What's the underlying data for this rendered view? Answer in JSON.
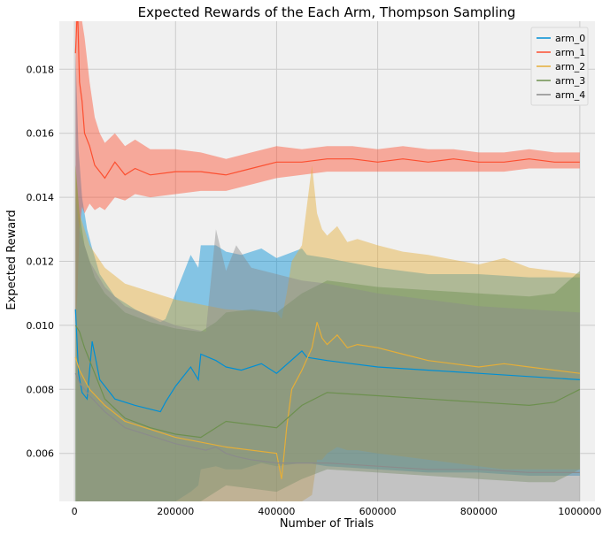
{
  "chart_data": {
    "type": "line",
    "title": "Expected Rewards of the Each Arm, Thompson Sampling",
    "xlabel": "Number of Trials",
    "ylabel": "Expected Reward",
    "xlim": [
      -30000,
      1030000
    ],
    "ylim": [
      0.0045,
      0.0195
    ],
    "xticks": [
      0,
      200000,
      400000,
      600000,
      800000,
      1000000
    ],
    "xtick_labels": [
      "0",
      "200000",
      "400000",
      "600000",
      "800000",
      "1000000"
    ],
    "yticks": [
      0.006,
      0.008,
      0.01,
      0.012,
      0.014,
      0.016,
      0.018
    ],
    "ytick_labels": [
      "0.006",
      "0.008",
      "0.010",
      "0.012",
      "0.014",
      "0.016",
      "0.018"
    ],
    "grid": true,
    "legend_position": "top-right",
    "background": "#f0f0f0",
    "series": [
      {
        "name": "arm_0",
        "color": "#008fd5",
        "x": [
          2000,
          8000,
          15000,
          25000,
          35000,
          50000,
          80000,
          120000,
          170000,
          180000,
          200000,
          230000,
          245000,
          250000,
          280000,
          300000,
          330000,
          370000,
          400000,
          450000,
          460000,
          500000,
          600000,
          700000,
          800000,
          900000,
          1000000
        ],
        "y": [
          0.0105,
          0.0085,
          0.0079,
          0.0077,
          0.0095,
          0.0083,
          0.0077,
          0.0075,
          0.0073,
          0.0076,
          0.0081,
          0.0087,
          0.0083,
          0.0091,
          0.0089,
          0.0087,
          0.0086,
          0.0088,
          0.0085,
          0.0092,
          0.009,
          0.0089,
          0.0087,
          0.0086,
          0.0085,
          0.0084,
          0.0083
        ],
        "lower": [
          0.0045,
          0.0045,
          0.0045,
          0.0045,
          0.0045,
          0.0045,
          0.0045,
          0.0045,
          0.0045,
          0.0045,
          0.0045,
          0.0048,
          0.005,
          0.0055,
          0.0056,
          0.0055,
          0.0055,
          0.0057,
          0.0056,
          0.0057,
          0.0057,
          0.0056,
          0.0055,
          0.0054,
          0.0054,
          0.0053,
          0.0053
        ],
        "upper": [
          0.0185,
          0.0155,
          0.014,
          0.013,
          0.0124,
          0.0116,
          0.0109,
          0.0105,
          0.0101,
          0.0102,
          0.011,
          0.0122,
          0.0118,
          0.0125,
          0.0125,
          0.0123,
          0.0122,
          0.0124,
          0.0121,
          0.0124,
          0.0122,
          0.0121,
          0.0118,
          0.0116,
          0.0116,
          0.0115,
          0.0115
        ]
      },
      {
        "name": "arm_1",
        "color": "#fc4f30",
        "x": [
          2000,
          6000,
          10000,
          15000,
          20000,
          30000,
          40000,
          50000,
          60000,
          80000,
          100000,
          120000,
          150000,
          200000,
          250000,
          300000,
          350000,
          400000,
          450000,
          500000,
          550000,
          600000,
          650000,
          700000,
          750000,
          800000,
          850000,
          900000,
          950000,
          1000000
        ],
        "y": [
          0.0185,
          0.02,
          0.0176,
          0.017,
          0.016,
          0.0156,
          0.015,
          0.0148,
          0.0146,
          0.0151,
          0.0147,
          0.0149,
          0.0147,
          0.0148,
          0.0148,
          0.0147,
          0.0149,
          0.0151,
          0.0151,
          0.0152,
          0.0152,
          0.0151,
          0.0152,
          0.0151,
          0.0152,
          0.0151,
          0.0151,
          0.0152,
          0.0151,
          0.0151
        ],
        "lower": [
          0.01,
          0.011,
          0.013,
          0.0137,
          0.0135,
          0.0138,
          0.0136,
          0.0137,
          0.0136,
          0.014,
          0.0139,
          0.0141,
          0.014,
          0.0141,
          0.0142,
          0.0142,
          0.0144,
          0.0146,
          0.0147,
          0.0148,
          0.0148,
          0.0148,
          0.0148,
          0.0148,
          0.0148,
          0.0148,
          0.0148,
          0.0149,
          0.0149,
          0.0149
        ],
        "upper": [
          0.02,
          0.02,
          0.02,
          0.02,
          0.019,
          0.0176,
          0.0165,
          0.016,
          0.0157,
          0.016,
          0.0156,
          0.0158,
          0.0155,
          0.0155,
          0.0154,
          0.0152,
          0.0154,
          0.0156,
          0.0155,
          0.0156,
          0.0156,
          0.0155,
          0.0156,
          0.0155,
          0.0155,
          0.0154,
          0.0154,
          0.0155,
          0.0154,
          0.0154
        ]
      },
      {
        "name": "arm_2",
        "color": "#e5ae38",
        "x": [
          2000,
          10000,
          30000,
          60000,
          100000,
          200000,
          300000,
          400000,
          410000,
          420000,
          430000,
          450000,
          470000,
          480000,
          490000,
          500000,
          520000,
          540000,
          560000,
          600000,
          650000,
          700000,
          800000,
          850000,
          900000,
          1000000
        ],
        "y": [
          0.009,
          0.0086,
          0.008,
          0.0075,
          0.007,
          0.0065,
          0.0062,
          0.006,
          0.0052,
          0.0068,
          0.008,
          0.0086,
          0.0093,
          0.0101,
          0.0096,
          0.0094,
          0.0097,
          0.0093,
          0.0094,
          0.0093,
          0.0091,
          0.0089,
          0.0087,
          0.0088,
          0.0087,
          0.0085
        ],
        "lower": [
          0.0045,
          0.0045,
          0.0045,
          0.0045,
          0.0045,
          0.0045,
          0.0045,
          0.0045,
          0.0045,
          0.0045,
          0.0045,
          0.0045,
          0.0047,
          0.0058,
          0.0058,
          0.006,
          0.0062,
          0.0061,
          0.0061,
          0.006,
          0.0059,
          0.0058,
          0.0056,
          0.0055,
          0.0055,
          0.0055
        ],
        "upper": [
          0.015,
          0.0135,
          0.0125,
          0.0118,
          0.0113,
          0.0108,
          0.0105,
          0.0104,
          0.0102,
          0.011,
          0.012,
          0.0125,
          0.015,
          0.0135,
          0.013,
          0.0128,
          0.0131,
          0.0126,
          0.0127,
          0.0125,
          0.0123,
          0.0122,
          0.0119,
          0.0121,
          0.0118,
          0.0116
        ]
      },
      {
        "name": "arm_3",
        "color": "#6d904f",
        "x": [
          2000,
          10000,
          20000,
          40000,
          60000,
          100000,
          150000,
          200000,
          250000,
          280000,
          300000,
          350000,
          400000,
          450000,
          500000,
          600000,
          700000,
          800000,
          900000,
          950000,
          1000000
        ],
        "y": [
          0.01,
          0.0098,
          0.0093,
          0.0085,
          0.0077,
          0.0071,
          0.0068,
          0.0066,
          0.0065,
          0.0068,
          0.007,
          0.0069,
          0.0068,
          0.0075,
          0.0079,
          0.0078,
          0.0077,
          0.0076,
          0.0075,
          0.0076,
          0.008
        ],
        "lower": [
          0.0045,
          0.0045,
          0.0045,
          0.0045,
          0.0045,
          0.0045,
          0.0045,
          0.0045,
          0.0045,
          0.0048,
          0.005,
          0.0049,
          0.0048,
          0.0052,
          0.0055,
          0.0054,
          0.0053,
          0.0052,
          0.0051,
          0.0051,
          0.0055
        ],
        "upper": [
          0.015,
          0.0135,
          0.0125,
          0.0115,
          0.011,
          0.0104,
          0.0101,
          0.0099,
          0.0098,
          0.0101,
          0.0104,
          0.0105,
          0.0104,
          0.011,
          0.0114,
          0.0112,
          0.0111,
          0.011,
          0.0109,
          0.011,
          0.0117
        ]
      },
      {
        "name": "arm_4",
        "color": "#8b8b8b",
        "x": [
          2000,
          10000,
          30000,
          60000,
          100000,
          200000,
          260000,
          280000,
          300000,
          320000,
          350000,
          400000,
          450000,
          500000,
          600000,
          700000,
          800000,
          900000,
          1000000
        ],
        "y": [
          0.0085,
          0.0082,
          0.0078,
          0.0073,
          0.0068,
          0.0063,
          0.0061,
          0.0062,
          0.006,
          0.0059,
          0.0058,
          0.0057,
          0.0057,
          0.0057,
          0.0056,
          0.0055,
          0.0055,
          0.0054,
          0.0054
        ],
        "lower": [
          0.0045,
          0.0045,
          0.0045,
          0.0045,
          0.0045,
          0.0045,
          0.0045,
          0.0045,
          0.0045,
          0.0045,
          0.0045,
          0.0045,
          0.0045,
          0.0045,
          0.0045,
          0.0045,
          0.0045,
          0.0045,
          0.0045
        ],
        "upper": [
          0.014,
          0.013,
          0.012,
          0.0112,
          0.0106,
          0.01,
          0.0098,
          0.013,
          0.0117,
          0.0125,
          0.0118,
          0.0116,
          0.0114,
          0.0113,
          0.011,
          0.0108,
          0.0106,
          0.0105,
          0.0104
        ]
      }
    ]
  }
}
